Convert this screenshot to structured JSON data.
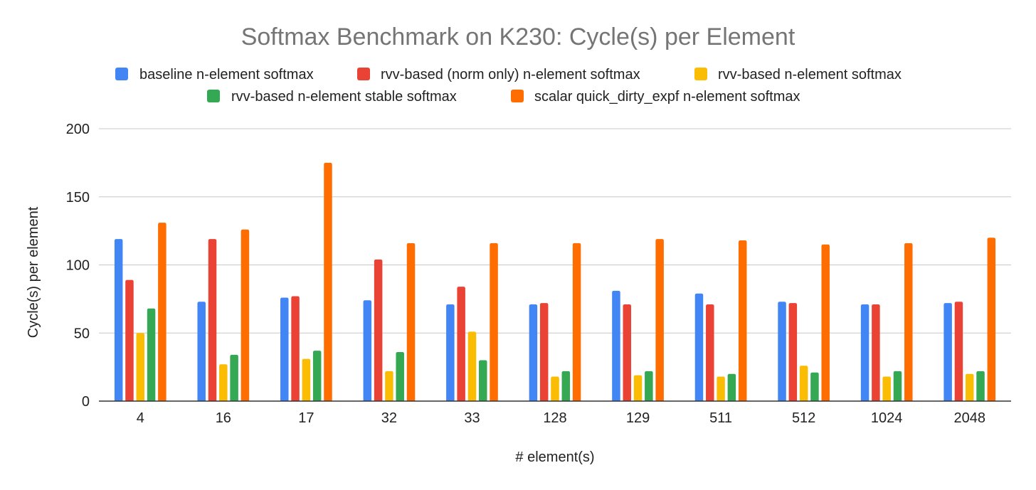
{
  "chart_data": {
    "type": "bar",
    "title": "Softmax Benchmark on K230: Cycle(s) per Element",
    "xlabel": "# element(s)",
    "ylabel": "Cycle(s) per element",
    "ylim": [
      0,
      200
    ],
    "yticks": [
      "0",
      "50",
      "100",
      "150",
      "200"
    ],
    "grid": true,
    "legend_position": "top",
    "categories": [
      "4",
      "16",
      "17",
      "32",
      "33",
      "128",
      "129",
      "511",
      "512",
      "1024",
      "2048"
    ],
    "series": [
      {
        "name": "baseline n-element softmax",
        "color": "#4285f4",
        "values": [
          119,
          73,
          76,
          74,
          71,
          71,
          81,
          79,
          73,
          71,
          72
        ]
      },
      {
        "name": "rvv-based (norm only) n-element softmax",
        "color": "#ea4335",
        "values": [
          89,
          119,
          77,
          104,
          84,
          72,
          71,
          71,
          72,
          71,
          73
        ]
      },
      {
        "name": "rvv-based n-element softmax",
        "color": "#fbbc04",
        "values": [
          50,
          27,
          31,
          22,
          51,
          18,
          19,
          18,
          26,
          18,
          20
        ]
      },
      {
        "name": "rvv-based n-element stable softmax",
        "color": "#34a853",
        "values": [
          68,
          34,
          37,
          36,
          30,
          22,
          22,
          20,
          21,
          22,
          22
        ]
      },
      {
        "name": "scalar quick_dirty_expf n-element softmax",
        "color": "#ff6d01",
        "values": [
          131,
          126,
          175,
          116,
          116,
          116,
          119,
          118,
          115,
          116,
          120
        ]
      }
    ]
  }
}
